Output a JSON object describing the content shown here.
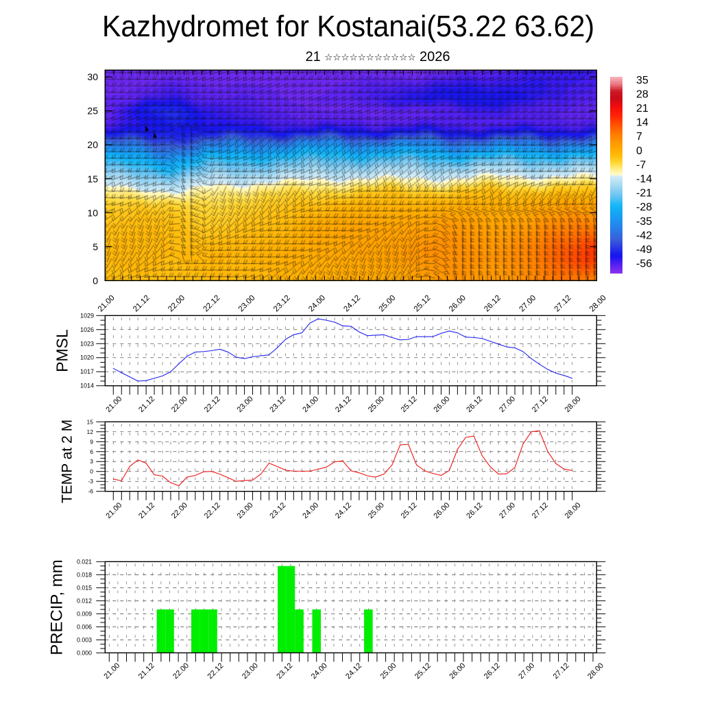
{
  "chart_data": [
    {
      "type": "heatmap",
      "title": "Kazhydromet for Kostanai(53.22 63.62)",
      "subtitle": {
        "day": "21",
        "month": "☆☆☆☆☆☆☆☆☆☆☆",
        "year": "2026"
      },
      "xlabel": "",
      "ylabel": "",
      "x_tick_labels": [
        "21.00",
        "21.12",
        "22.00",
        "22.12",
        "23.00",
        "23.12",
        "24.00",
        "24.12",
        "25.00",
        "25.12",
        "26.00",
        "26.12",
        "27.00",
        "27.12",
        "28.00"
      ],
      "y_tick_labels": [
        "0",
        "5",
        "10",
        "15",
        "20",
        "25",
        "30"
      ],
      "ylim": [
        0,
        31
      ],
      "z_levels": [
        0,
        4,
        8,
        11,
        13,
        14.5,
        16,
        18,
        20,
        21.5,
        23,
        25,
        27,
        31
      ],
      "values": [
        [
          -3,
          -2,
          -3,
          -2,
          -2,
          -1,
          0,
          1,
          1,
          3,
          5,
          4,
          6,
          9,
          8
        ],
        [
          -2,
          -1,
          -2,
          -1,
          -1,
          0,
          1,
          2,
          3,
          5,
          6,
          5,
          7,
          12,
          16
        ],
        [
          -3,
          -2,
          -3,
          -4,
          -3,
          -2,
          1,
          2,
          2,
          3,
          4,
          3,
          4,
          7,
          9
        ],
        [
          -5,
          -4,
          -6,
          -6,
          -5,
          -4,
          -2,
          -1,
          -1,
          0,
          0,
          0,
          1,
          2,
          3
        ],
        [
          -9,
          -9,
          -13,
          -9,
          -8,
          -7,
          -6,
          -5,
          -4,
          -4,
          -4,
          -3,
          -3,
          -3,
          -3
        ],
        [
          -15,
          -16,
          -18,
          -14,
          -13,
          -12,
          -11,
          -10,
          -10,
          -10,
          -10,
          -9,
          -9,
          -9,
          -9
        ],
        [
          -21,
          -22,
          -25,
          -20,
          -19,
          -18,
          -17,
          -16,
          -16,
          -16,
          -16,
          -15,
          -15,
          -15,
          -15
        ],
        [
          -29,
          -30,
          -33,
          -28,
          -27,
          -26,
          -25,
          -25,
          -25,
          -25,
          -26,
          -25,
          -25,
          -25,
          -25
        ],
        [
          -40,
          -42,
          -44,
          -40,
          -38,
          -37,
          -36,
          -36,
          -36,
          -37,
          -38,
          -38,
          -38,
          -38,
          -38
        ],
        [
          -50,
          -51,
          -50,
          -50,
          -49,
          -49,
          -49,
          -49,
          -49,
          -49,
          -50,
          -50,
          -50,
          -50,
          -50
        ],
        [
          -56,
          -53,
          -51,
          -53,
          -54,
          -55,
          -56,
          -56,
          -56,
          -56,
          -56,
          -56,
          -56,
          -56,
          -56
        ],
        [
          -58,
          -52,
          -50,
          -54,
          -56,
          -57,
          -58,
          -58,
          -58,
          -57,
          -56,
          -55,
          -56,
          -57,
          -58
        ],
        [
          -58,
          -57,
          -55,
          -57,
          -57,
          -58,
          -58,
          -57,
          -55,
          -53,
          -52,
          -52,
          -53,
          -55,
          -57
        ],
        [
          -59,
          -59,
          -59,
          -59,
          -59,
          -59,
          -59,
          -59,
          -59,
          -59,
          -58,
          -57,
          -55,
          -54,
          -55
        ]
      ],
      "colorbar": {
        "labels": [
          "35",
          "28",
          "21",
          "14",
          "7",
          "0",
          "-7",
          "-14",
          "-21",
          "-28",
          "-35",
          "-42",
          "-49",
          "-56"
        ],
        "range": [
          -61,
          37
        ],
        "stops": [
          [
            37,
            "#f7b8c0"
          ],
          [
            33,
            "#e8707c"
          ],
          [
            30,
            "#cc1824"
          ],
          [
            26,
            "#c80c18"
          ],
          [
            22,
            "#f40c0c"
          ],
          [
            18,
            "#ff2008"
          ],
          [
            14,
            "#ff4800"
          ],
          [
            9,
            "#ff7800"
          ],
          [
            4,
            "#ff9a00"
          ],
          [
            0,
            "#ffae00"
          ],
          [
            -3,
            "#ffc010"
          ],
          [
            -6,
            "#ffd838"
          ],
          [
            -9,
            "#ffef8c"
          ],
          [
            -12,
            "#fffcd8"
          ],
          [
            -12.5,
            "#d4ecf8"
          ],
          [
            -17,
            "#a8daf2"
          ],
          [
            -22,
            "#6cc4f2"
          ],
          [
            -27,
            "#18b8f8"
          ],
          [
            -31,
            "#12a6f6"
          ],
          [
            -35,
            "#2090f0"
          ],
          [
            -40,
            "#2a76e6"
          ],
          [
            -44,
            "#3a60d8"
          ],
          [
            -48,
            "#2a3ae6"
          ],
          [
            -52,
            "#1414ee"
          ],
          [
            -56,
            "#4c1ef0"
          ],
          [
            -61,
            "#8c32f0"
          ]
        ]
      }
    },
    {
      "type": "line",
      "ylabel": "PMSL",
      "ylim": [
        1014,
        1029
      ],
      "y_tick_labels": [
        "1014",
        "1017",
        "1020",
        "1023",
        "1026",
        "1029"
      ],
      "x_tick_labels": [
        "21.00",
        "21.12",
        "22.00",
        "22.12",
        "23.00",
        "23.12",
        "24.00",
        "24.12",
        "25.00",
        "25.12",
        "26.00",
        "26.12",
        "27.00",
        "27.12",
        "28.00"
      ],
      "series": [
        {
          "name": "PMSL",
          "color": "#2020f0",
          "values": [
            1017.7,
            1016.8,
            1015.9,
            1015.0,
            1015.1,
            1015.6,
            1016.1,
            1017.0,
            1018.7,
            1020.3,
            1021.2,
            1021.3,
            1021.5,
            1021.8,
            1021.2,
            1020.1,
            1019.8,
            1020.2,
            1020.4,
            1020.6,
            1022.1,
            1023.9,
            1024.9,
            1025.3,
            1027.4,
            1028.3,
            1028.0,
            1027.6,
            1026.8,
            1026.7,
            1025.5,
            1024.7,
            1024.8,
            1024.9,
            1024.3,
            1023.8,
            1023.9,
            1024.5,
            1024.5,
            1024.5,
            1025.2,
            1025.7,
            1025.3,
            1024.4,
            1024.3,
            1024.1,
            1023.5,
            1022.9,
            1022.3,
            1022.1,
            1021.3,
            1019.8,
            1018.6,
            1017.5,
            1016.7,
            1016.2,
            1015.6
          ]
        }
      ]
    },
    {
      "type": "line",
      "ylabel": "TEMP at 2 M",
      "ylim": [
        -6,
        15
      ],
      "y_tick_labels": [
        "-6",
        "-3",
        "0",
        "3",
        "6",
        "9",
        "12",
        "15"
      ],
      "x_tick_labels": [
        "21.00",
        "21.12",
        "22.00",
        "22.12",
        "23.00",
        "23.12",
        "24.00",
        "24.12",
        "25.00",
        "25.12",
        "26.00",
        "26.12",
        "27.00",
        "27.12",
        "28.00"
      ],
      "series": [
        {
          "name": "TEMP at 2 M",
          "color": "#f01414",
          "values": [
            -2.3,
            -2.8,
            1.5,
            3.5,
            2.5,
            -1.0,
            -1.4,
            -3.4,
            -4.3,
            -1.7,
            -1.2,
            -0.1,
            0.0,
            -0.8,
            -1.9,
            -3.0,
            -2.7,
            -2.6,
            -0.8,
            2.5,
            1.5,
            0.4,
            0.1,
            0.1,
            0.1,
            0.7,
            1.3,
            2.9,
            3.2,
            0.2,
            -0.4,
            -1.3,
            -1.7,
            -0.8,
            1.9,
            8.0,
            8.2,
            2.0,
            0.2,
            -0.6,
            -1.2,
            0.3,
            6.7,
            10.3,
            10.7,
            4.8,
            1.4,
            -0.8,
            -0.7,
            1.2,
            8.3,
            12.0,
            12.3,
            6.1,
            2.4,
            0.7,
            0.3
          ]
        }
      ]
    },
    {
      "type": "bar",
      "ylabel": "PRECIP, mm",
      "ylim": [
        0,
        0.021
      ],
      "y_tick_labels": [
        "0.000",
        "0.003",
        "0.006",
        "0.009",
        "0.012",
        "0.015",
        "0.018",
        "0.021"
      ],
      "x_tick_labels": [
        "21.00",
        "21.12",
        "22.00",
        "22.12",
        "23.00",
        "23.12",
        "24.00",
        "24.12",
        "25.00",
        "25.12",
        "26.00",
        "26.12",
        "27.00",
        "27.12",
        "28.00"
      ],
      "bar_color": "#00ee00",
      "values": [
        0,
        0,
        0,
        0,
        0,
        0,
        0.01,
        0.01,
        0,
        0,
        0.01,
        0.01,
        0.01,
        0,
        0,
        0,
        0,
        0,
        0,
        0,
        0.02,
        0.02,
        0.01,
        0,
        0.01,
        0,
        0,
        0,
        0,
        0,
        0.01,
        0,
        0,
        0,
        0,
        0,
        0,
        0,
        0,
        0,
        0,
        0,
        0,
        0,
        0,
        0,
        0,
        0,
        0,
        0,
        0,
        0,
        0,
        0,
        0,
        0,
        0
      ]
    }
  ]
}
